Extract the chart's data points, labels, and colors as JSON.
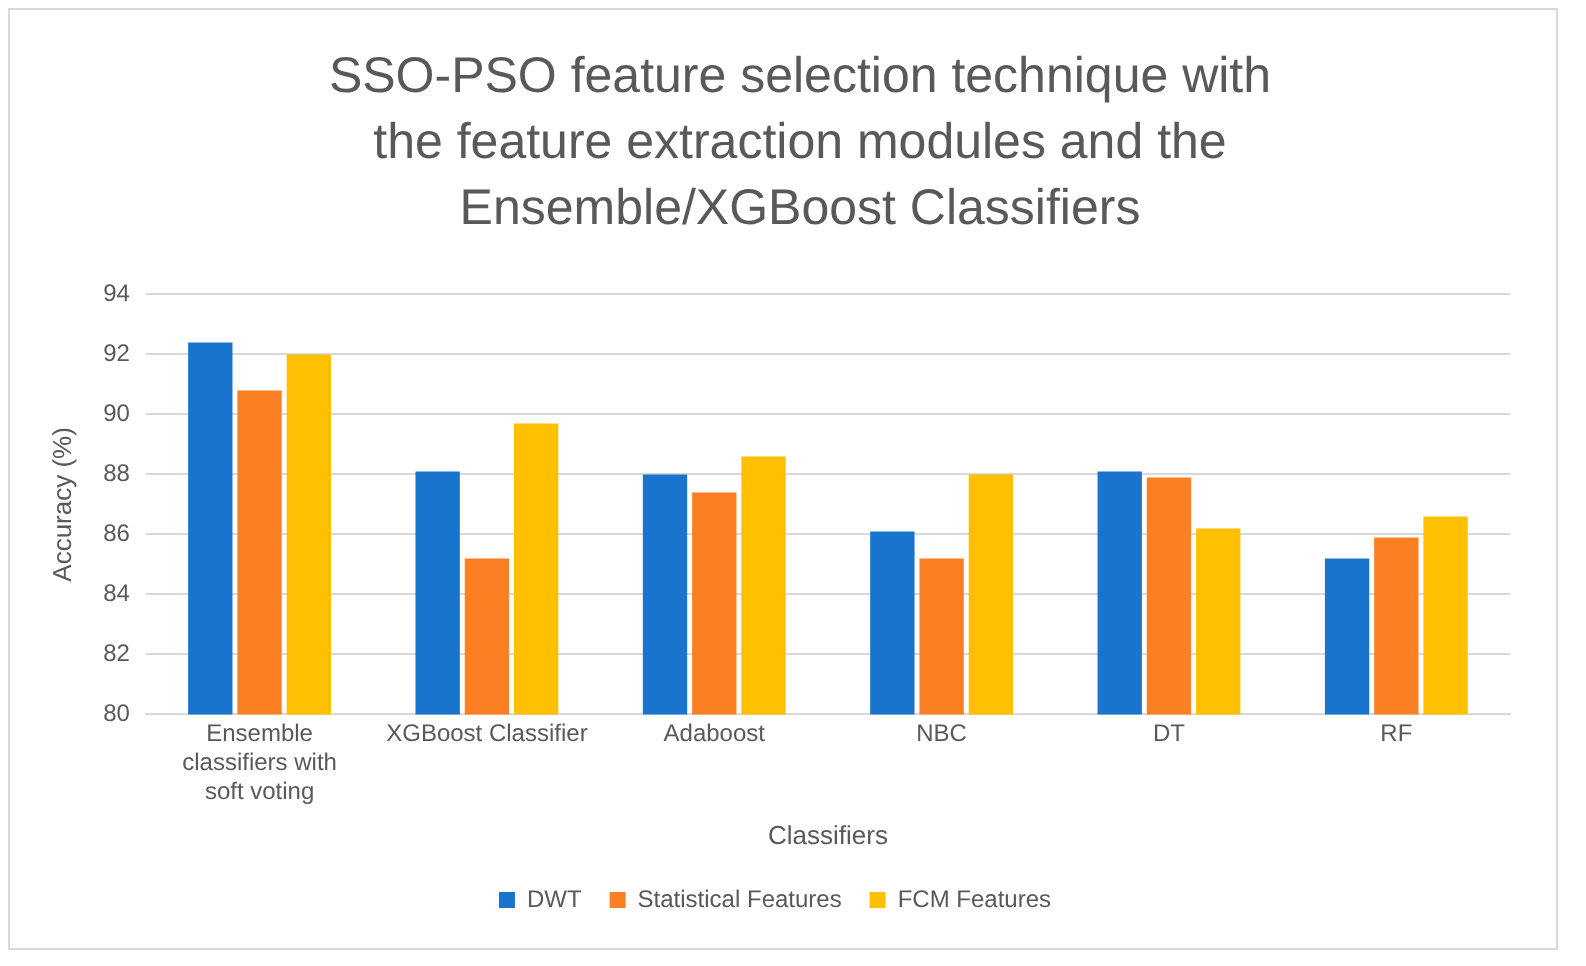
{
  "chart_data": {
    "type": "bar",
    "title": "SSO-PSO feature selection technique with the feature extraction modules and the Ensemble/XGBoost Classifiers",
    "xlabel": "Classifiers",
    "ylabel": "Accuracy (%)",
    "categories": [
      "Ensemble classifiers with soft voting",
      "XGBoost Classifier",
      "Adaboost",
      "NBC",
      "DT",
      "RF"
    ],
    "series": [
      {
        "name": "DWT",
        "color": "#1874cd",
        "values": [
          92.4,
          88.1,
          88.0,
          86.1,
          88.1,
          85.2
        ]
      },
      {
        "name": "Statistical Features",
        "color": "#fd7f23",
        "values": [
          90.8,
          85.2,
          87.4,
          85.2,
          87.9,
          85.9
        ]
      },
      {
        "name": "FCM Features",
        "color": "#fec000",
        "values": [
          92.0,
          89.7,
          88.6,
          88.0,
          86.2,
          86.6
        ]
      }
    ],
    "ylim": [
      80,
      94
    ],
    "yticks": [
      80,
      82,
      84,
      86,
      88,
      90,
      92,
      94
    ],
    "grid": "y",
    "legend": "bottom"
  }
}
